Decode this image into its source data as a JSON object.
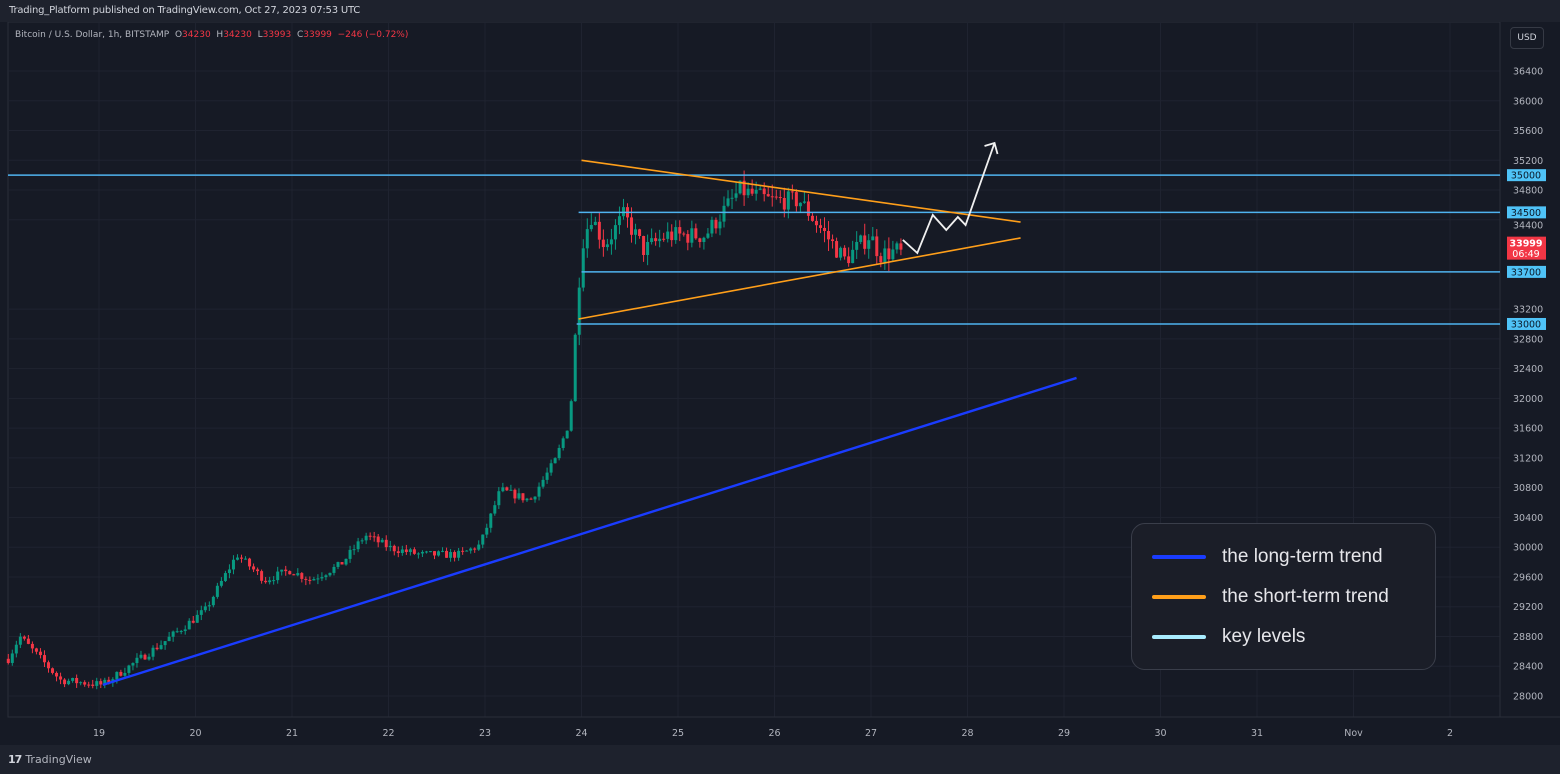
{
  "header": {
    "published": "Trading_Platform published on TradingView.com, Oct 27, 2023 07:53 UTC"
  },
  "symbol": {
    "name": "Bitcoin / U.S. Dollar, 1h, BITSTAMP",
    "open_label": "O",
    "open": "34230",
    "high_label": "H",
    "high": "34230",
    "low_label": "L",
    "low": "33993",
    "close_label": "C",
    "close": "33999",
    "change": "−246 (−0.72%)"
  },
  "currency_button": "USD",
  "current_price": {
    "value": "33999",
    "countdown": "06:49",
    "color": "#f23645"
  },
  "footer": {
    "brand": "TradingView"
  },
  "key_legend": [
    {
      "label": "the long-term trend",
      "color": "#1a3cff"
    },
    {
      "label": "the short-term trend",
      "color": "#ff9f1a"
    },
    {
      "label": "key levels",
      "color": "#a8ecff"
    }
  ],
  "chart_data": {
    "type": "candlestick",
    "timeframe": "1h",
    "x_ticks": [
      {
        "day": 19,
        "label": "19"
      },
      {
        "day": 20,
        "label": "20"
      },
      {
        "day": 21,
        "label": "21"
      },
      {
        "day": 22,
        "label": "22"
      },
      {
        "day": 23,
        "label": "23"
      },
      {
        "day": 24,
        "label": "24"
      },
      {
        "day": 25,
        "label": "25"
      },
      {
        "day": 26,
        "label": "26"
      },
      {
        "day": 27,
        "label": "27"
      },
      {
        "day": 28,
        "label": "28"
      },
      {
        "day": 29,
        "label": "29"
      },
      {
        "day": 30,
        "label": "30"
      },
      {
        "day": 31,
        "label": "31"
      },
      {
        "day": 32,
        "label": "Nov"
      },
      {
        "day": 33,
        "label": "2"
      }
    ],
    "y_ticks": [
      "36400",
      "36000",
      "35600",
      "35200",
      "34800",
      "34400",
      "33200",
      "32800",
      "32400",
      "32000",
      "31600",
      "31200",
      "30800",
      "30400",
      "30000",
      "29600",
      "29200",
      "28800",
      "28400",
      "28000"
    ],
    "ylim": [
      27800,
      36900
    ],
    "up_color": "#089981",
    "down_color": "#f23645",
    "close_path_approx": [
      [
        18.06,
        28500
      ],
      [
        18.18,
        28800
      ],
      [
        18.6,
        28215
      ],
      [
        19.04,
        28150
      ],
      [
        19.63,
        28685
      ],
      [
        20.1,
        29150
      ],
      [
        20.43,
        29900
      ],
      [
        20.72,
        29560
      ],
      [
        20.98,
        29690
      ],
      [
        21.19,
        29560
      ],
      [
        21.5,
        29760
      ],
      [
        21.76,
        30160
      ],
      [
        22.02,
        29990
      ],
      [
        22.33,
        29900
      ],
      [
        22.74,
        29900
      ],
      [
        22.95,
        30030
      ],
      [
        23.16,
        30770
      ],
      [
        23.47,
        30630
      ],
      [
        23.73,
        31170
      ],
      [
        23.88,
        31710
      ],
      [
        23.94,
        32920
      ],
      [
        24.0,
        34060
      ],
      [
        24.1,
        34460
      ],
      [
        24.24,
        34060
      ],
      [
        24.44,
        34460
      ],
      [
        24.65,
        33990
      ],
      [
        24.87,
        34190
      ],
      [
        25.28,
        34190
      ],
      [
        25.64,
        34800
      ],
      [
        25.95,
        34660
      ],
      [
        26.26,
        34660
      ],
      [
        26.57,
        34130
      ],
      [
        26.73,
        33860
      ],
      [
        26.99,
        34200
      ],
      [
        27.09,
        33930
      ],
      [
        27.32,
        33999
      ]
    ],
    "key_levels": [
      {
        "price": 35000,
        "label": "35000",
        "from_day": 18.0
      },
      {
        "price": 34500,
        "label": "34500",
        "from_day": 23.97
      },
      {
        "price": 33700,
        "label": "33700",
        "from_day": 24.0
      },
      {
        "price": 33000,
        "label": "33000",
        "from_day": 23.95
      }
    ],
    "short_term_trend": [
      {
        "from": [
          24.0,
          35200
        ],
        "to": [
          28.55,
          34370
        ]
      },
      {
        "from": [
          23.97,
          33067
        ],
        "to": [
          28.55,
          34156
        ]
      }
    ],
    "long_term_trend": {
      "from": [
        19.04,
        28150
      ],
      "to": [
        29.13,
        32275
      ]
    },
    "projection_path": [
      [
        27.33,
        34129
      ],
      [
        27.48,
        33954
      ],
      [
        27.64,
        34465
      ],
      [
        27.78,
        34263
      ],
      [
        27.9,
        34438
      ],
      [
        27.98,
        34330
      ],
      [
        28.28,
        35432
      ]
    ]
  }
}
